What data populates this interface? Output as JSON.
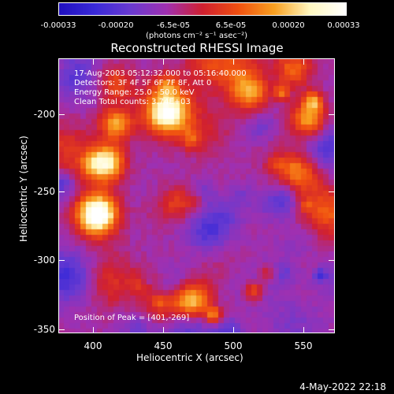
{
  "colorbar": {
    "ticks": [
      "-0.00033",
      "-0.00020",
      "-6.5e-05",
      "6.5e-05",
      "0.00020",
      "0.00033"
    ],
    "units": "(photons cm⁻² s⁻¹ asec⁻²)",
    "colors": [
      "#2010c0",
      "#3a2ad8",
      "#6a3ad0",
      "#a030b0",
      "#d02030",
      "#f05010",
      "#f8a020",
      "#fff8c0",
      "#ffffff"
    ]
  },
  "plot": {
    "title": "Reconstructed RHESSI Image",
    "info": [
      "17-Aug-2003 05:12:32.000 to 05:16:40.000",
      "Detectors: 3F 4F 5F 6F 7F 8F, Att 0",
      "Energy Range: 25.0 - 50.0 keV",
      "Clean     Total counts: 3.74E+03"
    ],
    "peak": "Position of Peak = [401,-269]",
    "x_label": "Heliocentric X (arcsec)",
    "y_label": "Heliocentric Y (arcsec)",
    "x_ticks": [
      "400",
      "450",
      "500",
      "550"
    ],
    "y_ticks": [
      "-200",
      "-250",
      "-300",
      "-350"
    ]
  },
  "footer": "4-May-2022 22:18"
}
